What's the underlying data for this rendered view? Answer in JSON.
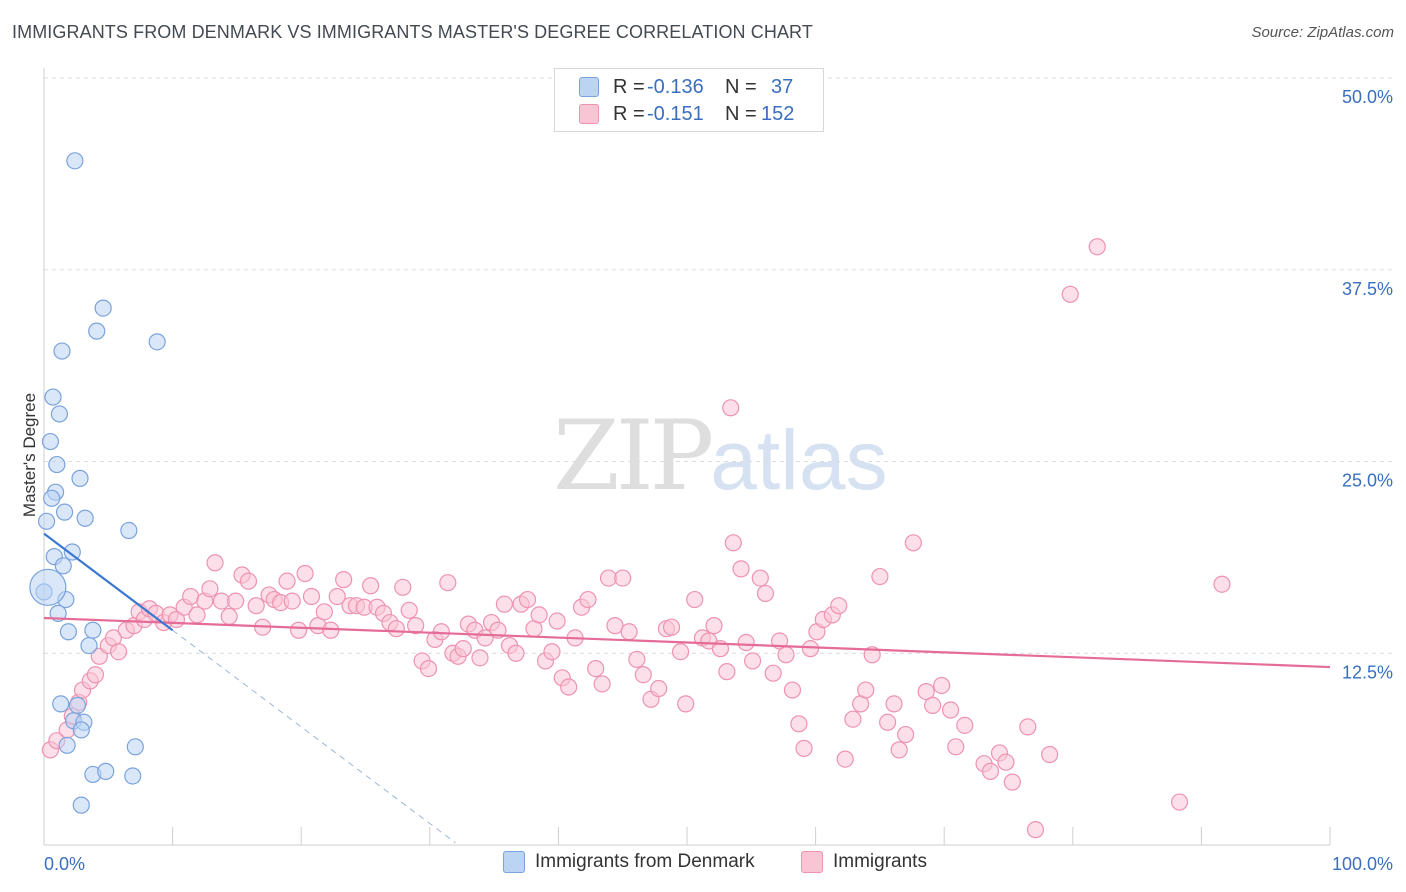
{
  "header": {
    "title": "IMMIGRANTS FROM DENMARK VS IMMIGRANTS MASTER'S DEGREE CORRELATION CHART",
    "source": "Source: ZipAtlas.com"
  },
  "watermark": {
    "zip": "ZIP",
    "atlas": "atlas"
  },
  "legend_top": [
    {
      "r_label": "R =",
      "r_value": "-0.136",
      "n_label": "N =",
      "n_value": "37",
      "color": "#a9c8f0"
    },
    {
      "r_label": "R =",
      "r_value": "-0.151",
      "n_label": "N =",
      "n_value": "152",
      "color": "#f6b9cc"
    }
  ],
  "chart_data": {
    "type": "scatter",
    "ylabel": "Master's Degree",
    "xlim": [
      0,
      100
    ],
    "ylim": [
      0,
      50
    ],
    "x_tick_labels": [
      "0.0%",
      "100.0%"
    ],
    "y_ticks": [
      {
        "value": 12.5,
        "label": "12.5%"
      },
      {
        "value": 25.0,
        "label": "25.0%"
      },
      {
        "value": 37.5,
        "label": "37.5%"
      },
      {
        "value": 50.0,
        "label": "50.0%"
      }
    ],
    "grid": "horizontal-dashed",
    "legend": "bottom",
    "series": [
      {
        "name": "Immigrants from Denmark",
        "fill": "#bcd4f4",
        "stroke": "#7aa3dc",
        "trend": {
          "x": [
            0,
            10
          ],
          "y": [
            20.3,
            14.0
          ],
          "dash_to_x": 32.0,
          "color": "#3a78d0"
        },
        "points": [
          [
            2.4,
            44.6
          ],
          [
            4.6,
            35.0
          ],
          [
            4.1,
            33.5
          ],
          [
            8.8,
            32.8
          ],
          [
            1.4,
            32.2
          ],
          [
            0.7,
            29.2
          ],
          [
            1.2,
            28.1
          ],
          [
            0.5,
            26.3
          ],
          [
            1.0,
            24.8
          ],
          [
            2.8,
            23.9
          ],
          [
            0.9,
            23.0
          ],
          [
            0.6,
            22.6
          ],
          [
            1.6,
            21.7
          ],
          [
            3.2,
            21.3
          ],
          [
            0.2,
            21.1
          ],
          [
            6.6,
            20.5
          ],
          [
            2.2,
            19.1
          ],
          [
            0.8,
            18.8
          ],
          [
            1.5,
            18.2
          ],
          [
            0.0,
            16.5
          ],
          [
            1.7,
            16.0
          ],
          [
            1.1,
            15.1
          ],
          [
            3.8,
            14.0
          ],
          [
            1.9,
            13.9
          ],
          [
            3.5,
            13.0
          ],
          [
            1.3,
            9.2
          ],
          [
            2.6,
            9.1
          ],
          [
            2.3,
            8.1
          ],
          [
            3.1,
            8.0
          ],
          [
            2.9,
            7.5
          ],
          [
            1.8,
            6.5
          ],
          [
            7.1,
            6.4
          ],
          [
            3.8,
            4.6
          ],
          [
            4.8,
            4.8
          ],
          [
            6.9,
            4.5
          ],
          [
            2.9,
            2.6
          ],
          [
            0.3,
            16.8
          ]
        ]
      },
      {
        "name": "Immigrants",
        "fill": "#f9c5d5",
        "stroke": "#ee93b0",
        "trend": {
          "x": [
            0,
            100
          ],
          "y": [
            14.8,
            11.6
          ],
          "color": "#e56b98"
        },
        "points": [
          [
            81.9,
            39.0
          ],
          [
            79.8,
            35.9
          ],
          [
            53.4,
            28.5
          ],
          [
            0.5,
            6.2
          ],
          [
            1.0,
            6.8
          ],
          [
            1.8,
            7.5
          ],
          [
            2.2,
            8.4
          ],
          [
            2.7,
            9.3
          ],
          [
            3.0,
            10.1
          ],
          [
            3.6,
            10.7
          ],
          [
            4.0,
            11.1
          ],
          [
            4.3,
            12.3
          ],
          [
            5.0,
            13.0
          ],
          [
            5.4,
            13.5
          ],
          [
            5.8,
            12.6
          ],
          [
            6.4,
            14.0
          ],
          [
            7.0,
            14.3
          ],
          [
            7.4,
            15.2
          ],
          [
            7.8,
            14.7
          ],
          [
            8.2,
            15.4
          ],
          [
            8.7,
            15.1
          ],
          [
            9.3,
            14.5
          ],
          [
            9.8,
            15.0
          ],
          [
            10.3,
            14.7
          ],
          [
            10.9,
            15.5
          ],
          [
            11.4,
            16.2
          ],
          [
            11.9,
            15.0
          ],
          [
            12.5,
            15.9
          ],
          [
            12.9,
            16.7
          ],
          [
            13.3,
            18.4
          ],
          [
            13.8,
            15.9
          ],
          [
            14.4,
            14.9
          ],
          [
            14.9,
            15.9
          ],
          [
            15.4,
            17.6
          ],
          [
            15.9,
            17.2
          ],
          [
            16.5,
            15.6
          ],
          [
            17.0,
            14.2
          ],
          [
            17.5,
            16.3
          ],
          [
            17.9,
            16.0
          ],
          [
            18.4,
            15.8
          ],
          [
            18.9,
            17.2
          ],
          [
            19.3,
            15.9
          ],
          [
            19.8,
            14.0
          ],
          [
            20.3,
            17.7
          ],
          [
            20.8,
            16.2
          ],
          [
            21.3,
            14.3
          ],
          [
            21.8,
            15.2
          ],
          [
            22.3,
            14.0
          ],
          [
            22.8,
            16.2
          ],
          [
            23.3,
            17.3
          ],
          [
            23.8,
            15.6
          ],
          [
            24.3,
            15.6
          ],
          [
            24.9,
            15.5
          ],
          [
            25.4,
            16.9
          ],
          [
            25.9,
            15.5
          ],
          [
            26.4,
            15.1
          ],
          [
            26.9,
            14.5
          ],
          [
            27.4,
            14.1
          ],
          [
            27.9,
            16.8
          ],
          [
            28.4,
            15.3
          ],
          [
            28.9,
            14.3
          ],
          [
            29.4,
            12.0
          ],
          [
            29.9,
            11.5
          ],
          [
            30.4,
            13.4
          ],
          [
            30.9,
            13.9
          ],
          [
            31.4,
            17.1
          ],
          [
            31.8,
            12.5
          ],
          [
            32.2,
            12.3
          ],
          [
            32.6,
            12.8
          ],
          [
            33.0,
            14.4
          ],
          [
            33.5,
            14.0
          ],
          [
            33.9,
            12.2
          ],
          [
            34.3,
            13.5
          ],
          [
            34.8,
            14.5
          ],
          [
            35.3,
            14.0
          ],
          [
            35.8,
            15.7
          ],
          [
            36.2,
            13.0
          ],
          [
            36.7,
            12.5
          ],
          [
            37.1,
            15.7
          ],
          [
            37.6,
            16.0
          ],
          [
            38.1,
            14.1
          ],
          [
            38.5,
            15.0
          ],
          [
            39.0,
            12.0
          ],
          [
            39.5,
            12.6
          ],
          [
            39.9,
            14.6
          ],
          [
            40.3,
            10.9
          ],
          [
            40.8,
            10.3
          ],
          [
            41.3,
            13.5
          ],
          [
            41.8,
            15.5
          ],
          [
            42.3,
            16.0
          ],
          [
            42.9,
            11.5
          ],
          [
            43.4,
            10.5
          ],
          [
            43.9,
            17.4
          ],
          [
            44.4,
            14.3
          ],
          [
            45.0,
            17.4
          ],
          [
            45.5,
            13.9
          ],
          [
            46.1,
            12.1
          ],
          [
            46.6,
            11.1
          ],
          [
            47.2,
            9.5
          ],
          [
            47.8,
            10.2
          ],
          [
            48.4,
            14.1
          ],
          [
            48.8,
            14.2
          ],
          [
            49.5,
            12.6
          ],
          [
            49.9,
            9.2
          ],
          [
            50.6,
            16.0
          ],
          [
            51.2,
            13.5
          ],
          [
            51.7,
            13.3
          ],
          [
            52.1,
            14.3
          ],
          [
            52.6,
            12.8
          ],
          [
            53.1,
            11.3
          ],
          [
            53.6,
            19.7
          ],
          [
            54.2,
            18.0
          ],
          [
            54.6,
            13.2
          ],
          [
            55.1,
            12.0
          ],
          [
            55.7,
            17.4
          ],
          [
            56.1,
            16.4
          ],
          [
            56.7,
            11.2
          ],
          [
            57.2,
            13.3
          ],
          [
            57.7,
            12.4
          ],
          [
            58.2,
            10.1
          ],
          [
            58.7,
            7.9
          ],
          [
            59.1,
            6.3
          ],
          [
            59.6,
            12.8
          ],
          [
            60.1,
            13.9
          ],
          [
            60.6,
            14.7
          ],
          [
            61.3,
            15.0
          ],
          [
            61.8,
            15.6
          ],
          [
            62.3,
            5.6
          ],
          [
            62.9,
            8.2
          ],
          [
            63.5,
            9.2
          ],
          [
            63.9,
            10.1
          ],
          [
            64.4,
            12.4
          ],
          [
            65.0,
            17.5
          ],
          [
            65.6,
            8.0
          ],
          [
            66.1,
            9.2
          ],
          [
            66.5,
            6.2
          ],
          [
            67.0,
            7.2
          ],
          [
            67.6,
            19.7
          ],
          [
            68.6,
            10.0
          ],
          [
            69.1,
            9.1
          ],
          [
            69.8,
            10.4
          ],
          [
            70.5,
            8.8
          ],
          [
            70.9,
            6.4
          ],
          [
            71.6,
            7.8
          ],
          [
            73.1,
            5.3
          ],
          [
            73.6,
            4.8
          ],
          [
            74.3,
            6.0
          ],
          [
            74.8,
            5.4
          ],
          [
            75.3,
            4.1
          ],
          [
            76.5,
            7.7
          ],
          [
            77.1,
            1.0
          ],
          [
            78.2,
            5.9
          ],
          [
            88.3,
            2.8
          ],
          [
            91.6,
            17.0
          ]
        ]
      }
    ]
  },
  "legend_bottom": [
    {
      "label": "Immigrants from Denmark",
      "color": "#bcd4f4"
    },
    {
      "label": "Immigrants",
      "color": "#f9c5d5"
    }
  ]
}
